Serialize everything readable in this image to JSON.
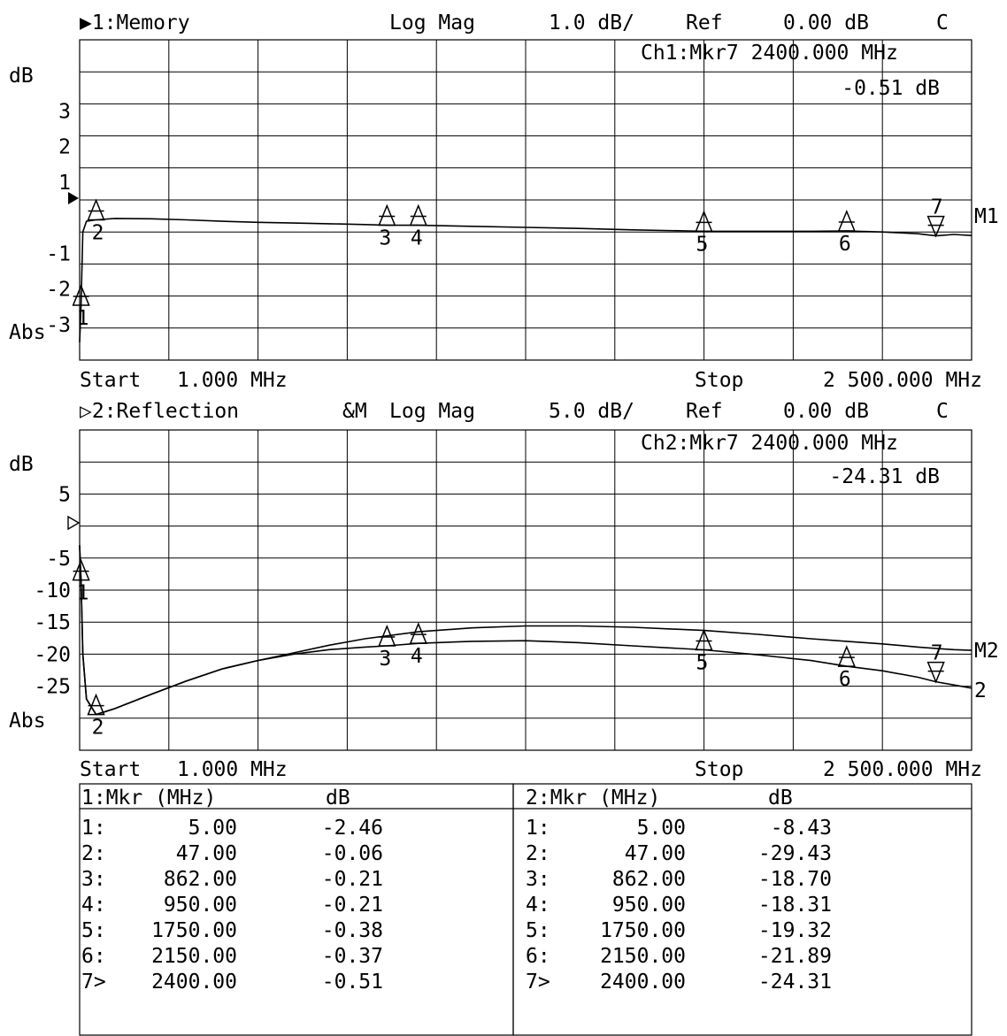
{
  "chart_data": [
    {
      "type": "line",
      "channel_label": "▶1:Memory",
      "format": "Log Mag",
      "scale": "1.0 dB/",
      "ref": "Ref",
      "ref_value": "0.00 dB",
      "cal_flag": "C",
      "ylabel": "dB",
      "abs_label": "Abs",
      "yticks": [
        "3",
        "2",
        "1",
        "-1",
        "-2",
        "-3"
      ],
      "ytick_values": [
        3,
        2,
        1,
        -1,
        -2,
        -3
      ],
      "ylim": [
        -4,
        5
      ],
      "xlim": [
        1,
        2500
      ],
      "start_label": "Start",
      "start_value": "1.000 MHz",
      "stop_label": "Stop",
      "stop_value": "2 500.000 MHz",
      "active_marker_line1": "Ch1:Mkr7 2400.000 MHz",
      "active_marker_line2": "-0.51 dB",
      "trace_label": "M1",
      "markers": [
        {
          "id": "1",
          "freq_mhz": 5.0,
          "db": -2.46
        },
        {
          "id": "2",
          "freq_mhz": 47.0,
          "db": -0.06
        },
        {
          "id": "3",
          "freq_mhz": 862.0,
          "db": -0.21
        },
        {
          "id": "4",
          "freq_mhz": 950.0,
          "db": -0.21
        },
        {
          "id": "5",
          "freq_mhz": 1750.0,
          "db": -0.38
        },
        {
          "id": "6",
          "freq_mhz": 2150.0,
          "db": -0.37
        },
        {
          "id": "7",
          "freq_mhz": 2400.0,
          "db": -0.51
        }
      ],
      "series": [
        {
          "name": "M1",
          "x": [
            1,
            5,
            10,
            20,
            47,
            100,
            200,
            300,
            400,
            500,
            600,
            700,
            800,
            862,
            950,
            1100,
            1250,
            1400,
            1550,
            1750,
            1900,
            2050,
            2150,
            2250,
            2350,
            2400,
            2450,
            2500
          ],
          "y": [
            -3.5,
            -2.46,
            -0.4,
            -0.1,
            -0.06,
            -0.02,
            -0.03,
            -0.06,
            -0.1,
            -0.13,
            -0.15,
            -0.17,
            -0.19,
            -0.21,
            -0.21,
            -0.24,
            -0.27,
            -0.3,
            -0.34,
            -0.38,
            -0.38,
            -0.38,
            -0.37,
            -0.4,
            -0.45,
            -0.51,
            -0.47,
            -0.5
          ]
        }
      ]
    },
    {
      "type": "line",
      "channel_label": "▷2:Reflection",
      "overlay": "&M",
      "format": "Log Mag",
      "scale": "5.0 dB/",
      "ref": "Ref",
      "ref_value": "0.00 dB",
      "cal_flag": "C",
      "ylabel": "dB",
      "abs_label": "Abs",
      "yticks": [
        "5",
        "-5",
        "-10",
        "-15",
        "-20",
        "-25"
      ],
      "ytick_values": [
        5,
        -5,
        -10,
        -15,
        -20,
        -25
      ],
      "ylim": [
        -35,
        15
      ],
      "xlim": [
        1,
        2500
      ],
      "start_label": "Start",
      "start_value": "1.000 MHz",
      "stop_label": "Stop",
      "stop_value": "2 500.000 MHz",
      "active_marker_line1": "Ch2:Mkr7 2400.000 MHz",
      "active_marker_line2": "-24.31 dB",
      "trace_labels": [
        "M2",
        "2"
      ],
      "markers": [
        {
          "id": "1",
          "freq_mhz": 5.0,
          "db": -8.43
        },
        {
          "id": "2",
          "freq_mhz": 47.0,
          "db": -29.43
        },
        {
          "id": "3",
          "freq_mhz": 862.0,
          "db": -18.7
        },
        {
          "id": "4",
          "freq_mhz": 950.0,
          "db": -18.31
        },
        {
          "id": "5",
          "freq_mhz": 1750.0,
          "db": -19.32
        },
        {
          "id": "6",
          "freq_mhz": 2150.0,
          "db": -21.89
        },
        {
          "id": "7",
          "freq_mhz": 2400.0,
          "db": -24.31
        }
      ],
      "series": [
        {
          "name": "2",
          "x": [
            1,
            3,
            5,
            10,
            20,
            47,
            100,
            200,
            300,
            400,
            500,
            600,
            700,
            800,
            862,
            950,
            1100,
            1250,
            1400,
            1550,
            1750,
            1900,
            2050,
            2150,
            2250,
            2350,
            2400,
            2450,
            2500
          ],
          "y": [
            -3,
            -6,
            -8.43,
            -20,
            -27,
            -29.43,
            -28.5,
            -26.3,
            -24.2,
            -22.3,
            -21,
            -20,
            -19.3,
            -18.9,
            -18.7,
            -18.31,
            -18,
            -17.9,
            -18.2,
            -18.7,
            -19.32,
            -20.1,
            -21,
            -21.89,
            -22.6,
            -23.6,
            -24.31,
            -24.8,
            -25.3
          ]
        },
        {
          "name": "M2",
          "x": [
            1,
            3,
            5,
            10,
            20,
            47,
            100,
            200,
            300,
            400,
            500,
            600,
            700,
            800,
            950,
            1100,
            1250,
            1400,
            1550,
            1750,
            1900,
            2050,
            2150,
            2250,
            2350,
            2400,
            2450,
            2500
          ],
          "y": [
            -3,
            -6,
            -8.4,
            -20,
            -27,
            -29.4,
            -28.5,
            -26.3,
            -24.2,
            -22.3,
            -21,
            -19.8,
            -18.6,
            -17.6,
            -16.5,
            -15.9,
            -15.6,
            -15.6,
            -15.8,
            -16.3,
            -16.9,
            -17.6,
            -18,
            -18.4,
            -18.9,
            -19.1,
            -19.3,
            -19.4
          ]
        }
      ]
    }
  ],
  "tables": [
    {
      "header_mkr": "1:Mkr (MHz)",
      "header_unit": "dB",
      "rows": [
        {
          "id": "1:",
          "freq": "5.00",
          "val": "-2.46"
        },
        {
          "id": "2:",
          "freq": "47.00",
          "val": "-0.06"
        },
        {
          "id": "3:",
          "freq": "862.00",
          "val": "-0.21"
        },
        {
          "id": "4:",
          "freq": "950.00",
          "val": "-0.21"
        },
        {
          "id": "5:",
          "freq": "1750.00",
          "val": "-0.38"
        },
        {
          "id": "6:",
          "freq": "2150.00",
          "val": "-0.37"
        },
        {
          "id": "7>",
          "freq": "2400.00",
          "val": "-0.51"
        }
      ]
    },
    {
      "header_mkr": "2:Mkr (MHz)",
      "header_unit": "dB",
      "rows": [
        {
          "id": "1:",
          "freq": "5.00",
          "val": "-8.43"
        },
        {
          "id": "2:",
          "freq": "47.00",
          "val": "-29.43"
        },
        {
          "id": "3:",
          "freq": "862.00",
          "val": "-18.70"
        },
        {
          "id": "4:",
          "freq": "950.00",
          "val": "-18.31"
        },
        {
          "id": "5:",
          "freq": "1750.00",
          "val": "-19.32"
        },
        {
          "id": "6:",
          "freq": "2150.00",
          "val": "-21.89"
        },
        {
          "id": "7>",
          "freq": "2400.00",
          "val": "-24.31"
        }
      ]
    }
  ]
}
